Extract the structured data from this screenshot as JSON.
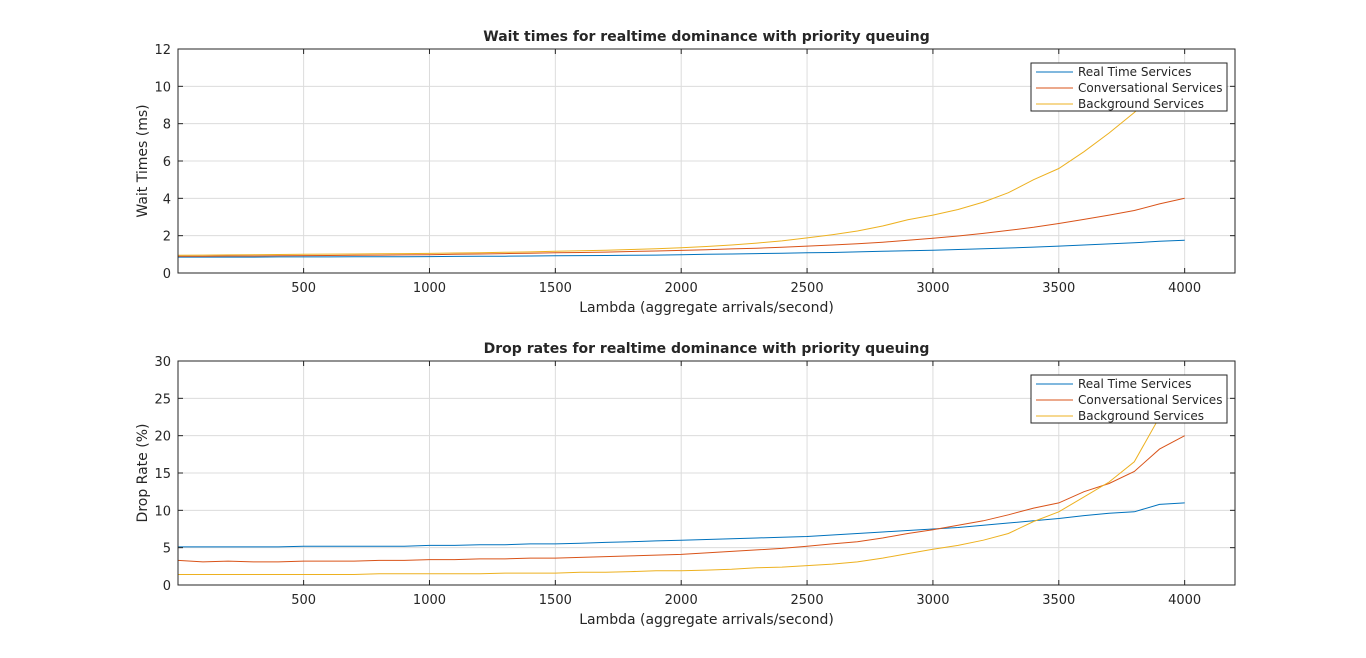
{
  "chart_data": [
    {
      "type": "line",
      "title": "Wait times for realtime dominance with priority queuing",
      "xlabel": "Lambda (aggregate arrivals/second)",
      "ylabel": "Wait Times (ms)",
      "xlim": [
        1,
        4200
      ],
      "ylim": [
        0,
        12
      ],
      "xticks": [
        500,
        1000,
        1500,
        2000,
        2500,
        3000,
        3500,
        4000
      ],
      "yticks": [
        0,
        2,
        4,
        6,
        8,
        10,
        12
      ],
      "grid": true,
      "legend_position": "top-right",
      "x": [
        1,
        100,
        200,
        300,
        400,
        500,
        600,
        700,
        800,
        900,
        1000,
        1100,
        1200,
        1300,
        1400,
        1500,
        1600,
        1700,
        1800,
        1900,
        2000,
        2100,
        2200,
        2300,
        2400,
        2500,
        2600,
        2700,
        2800,
        2900,
        3000,
        3100,
        3200,
        3300,
        3400,
        3500,
        3600,
        3700,
        3800,
        3900,
        4000
      ],
      "series": [
        {
          "name": "Real Time Services",
          "color": "#0072bd",
          "values": [
            0.85,
            0.85,
            0.85,
            0.85,
            0.86,
            0.86,
            0.86,
            0.87,
            0.87,
            0.87,
            0.88,
            0.89,
            0.9,
            0.9,
            0.91,
            0.92,
            0.93,
            0.94,
            0.95,
            0.96,
            0.98,
            1.0,
            1.02,
            1.04,
            1.06,
            1.08,
            1.1,
            1.13,
            1.16,
            1.19,
            1.22,
            1.26,
            1.3,
            1.34,
            1.39,
            1.44,
            1.5,
            1.56,
            1.62,
            1.7,
            1.75
          ]
        },
        {
          "name": "Conversational Services",
          "color": "#d95319",
          "values": [
            0.9,
            0.9,
            0.91,
            0.91,
            0.92,
            0.93,
            0.94,
            0.95,
            0.96,
            0.97,
            0.98,
            1.0,
            1.02,
            1.04,
            1.06,
            1.08,
            1.1,
            1.12,
            1.15,
            1.18,
            1.21,
            1.25,
            1.29,
            1.33,
            1.38,
            1.44,
            1.5,
            1.57,
            1.65,
            1.75,
            1.86,
            1.98,
            2.12,
            2.28,
            2.45,
            2.65,
            2.87,
            3.1,
            3.35,
            3.7,
            4.0
          ]
        },
        {
          "name": "Background Services",
          "color": "#edb120",
          "values": [
            0.95,
            0.96,
            0.97,
            0.98,
            0.99,
            1.0,
            1.01,
            1.02,
            1.03,
            1.04,
            1.05,
            1.07,
            1.09,
            1.11,
            1.13,
            1.16,
            1.19,
            1.22,
            1.26,
            1.3,
            1.35,
            1.42,
            1.5,
            1.6,
            1.72,
            1.88,
            2.05,
            2.25,
            2.52,
            2.85,
            3.1,
            3.4,
            3.8,
            4.3,
            5.0,
            5.6,
            6.5,
            7.5,
            8.6,
            9.8,
            11.2
          ]
        }
      ]
    },
    {
      "type": "line",
      "title": "Drop rates for realtime dominance with priority queuing",
      "xlabel": "Lambda (aggregate arrivals/second)",
      "ylabel": "Drop Rate (%)",
      "xlim": [
        1,
        4200
      ],
      "ylim": [
        0,
        30
      ],
      "xticks": [
        500,
        1000,
        1500,
        2000,
        2500,
        3000,
        3500,
        4000
      ],
      "yticks": [
        0,
        5,
        10,
        15,
        20,
        25,
        30
      ],
      "grid": true,
      "legend_position": "top-right",
      "x": [
        1,
        100,
        200,
        300,
        400,
        500,
        600,
        700,
        800,
        900,
        1000,
        1100,
        1200,
        1300,
        1400,
        1500,
        1600,
        1700,
        1800,
        1900,
        2000,
        2100,
        2200,
        2300,
        2400,
        2500,
        2600,
        2700,
        2800,
        2900,
        3000,
        3100,
        3200,
        3300,
        3400,
        3500,
        3600,
        3700,
        3800,
        3900,
        4000
      ],
      "series": [
        {
          "name": "Real Time Services",
          "color": "#0072bd",
          "values": [
            5.1,
            5.1,
            5.1,
            5.1,
            5.1,
            5.2,
            5.2,
            5.2,
            5.2,
            5.2,
            5.3,
            5.3,
            5.4,
            5.4,
            5.5,
            5.5,
            5.6,
            5.7,
            5.8,
            5.9,
            6.0,
            6.1,
            6.2,
            6.3,
            6.4,
            6.5,
            6.7,
            6.9,
            7.1,
            7.3,
            7.5,
            7.7,
            8.0,
            8.3,
            8.6,
            8.9,
            9.3,
            9.6,
            9.8,
            10.8,
            11.0
          ]
        },
        {
          "name": "Conversational Services",
          "color": "#d95319",
          "values": [
            3.3,
            3.1,
            3.2,
            3.1,
            3.1,
            3.2,
            3.2,
            3.2,
            3.3,
            3.3,
            3.4,
            3.4,
            3.5,
            3.5,
            3.6,
            3.6,
            3.7,
            3.8,
            3.9,
            4.0,
            4.1,
            4.3,
            4.5,
            4.7,
            4.9,
            5.2,
            5.5,
            5.8,
            6.3,
            6.9,
            7.4,
            8.0,
            8.6,
            9.4,
            10.3,
            11.0,
            12.5,
            13.6,
            15.2,
            18.2,
            20.0
          ]
        },
        {
          "name": "Background Services",
          "color": "#edb120",
          "values": [
            1.4,
            1.4,
            1.4,
            1.4,
            1.4,
            1.4,
            1.4,
            1.4,
            1.5,
            1.5,
            1.5,
            1.5,
            1.5,
            1.6,
            1.6,
            1.6,
            1.7,
            1.7,
            1.8,
            1.9,
            1.9,
            2.0,
            2.1,
            2.3,
            2.4,
            2.6,
            2.8,
            3.1,
            3.6,
            4.2,
            4.8,
            5.3,
            6.0,
            6.9,
            8.5,
            9.8,
            11.8,
            13.8,
            16.5,
            22.5,
            27.0
          ]
        }
      ]
    }
  ]
}
